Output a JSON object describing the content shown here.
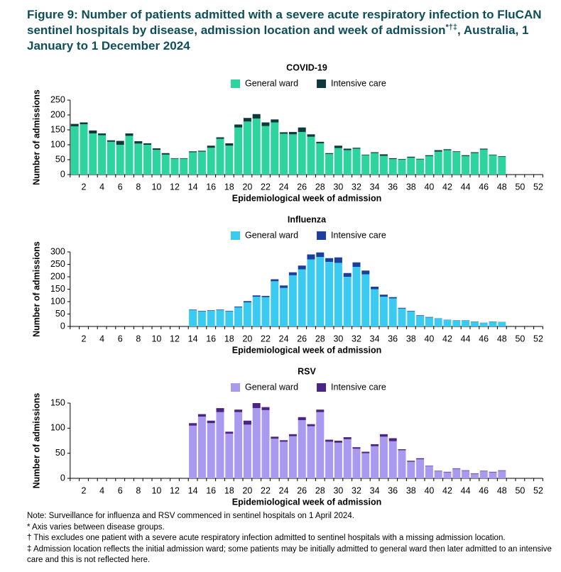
{
  "figure_title": {
    "main": "Figure 9: Number of patients admitted with a severe acute respiratory infection to FluCAN sentinel hospitals by disease, admission location and week of admission",
    "marks": "*†‡",
    "end": ", Australia, 1 January to 1 December 2024"
  },
  "chart_data": [
    {
      "type": "bar",
      "stacked": true,
      "title": "COVID-19",
      "xlabel": "Epidemiological week of admission",
      "ylabel": "Number of admissions",
      "categories": [
        null,
        "2",
        null,
        "4",
        null,
        "6",
        null,
        "8",
        null,
        "10",
        null,
        "12",
        null,
        "14",
        null,
        "16",
        null,
        "18",
        null,
        "20",
        null,
        "22",
        null,
        "24",
        null,
        "26",
        null,
        "28",
        null,
        "30",
        null,
        "32",
        null,
        "34",
        null,
        "36",
        null,
        "38",
        null,
        "40",
        null,
        "42",
        null,
        "44",
        null,
        "46",
        null,
        "48",
        null,
        "50",
        null,
        "52"
      ],
      "ylim": [
        0,
        250
      ],
      "yticks": [
        0,
        50,
        100,
        150,
        200,
        250
      ],
      "series": [
        {
          "name": "General ward",
          "color": "#2dd49d",
          "values": [
            162,
            169,
            138,
            132,
            110,
            100,
            130,
            104,
            100,
            83,
            67,
            53,
            53,
            75,
            77,
            90,
            120,
            97,
            158,
            178,
            188,
            163,
            175,
            137,
            135,
            143,
            127,
            105,
            69,
            89,
            82,
            87,
            65,
            72,
            63,
            52,
            50,
            57,
            51,
            62,
            77,
            82,
            76,
            62,
            72,
            84,
            65,
            60,
            null,
            null,
            null,
            null
          ]
        },
        {
          "name": "Intensive care",
          "color": "#0c3a3c",
          "values": [
            8,
            6,
            10,
            6,
            5,
            13,
            8,
            8,
            5,
            5,
            5,
            2,
            2,
            3,
            3,
            7,
            5,
            8,
            10,
            12,
            15,
            12,
            10,
            5,
            8,
            15,
            8,
            5,
            3,
            8,
            5,
            3,
            2,
            3,
            5,
            3,
            2,
            3,
            2,
            3,
            5,
            3,
            2,
            3,
            3,
            3,
            2,
            2,
            null,
            null,
            null,
            null
          ]
        }
      ]
    },
    {
      "type": "bar",
      "stacked": true,
      "title": "Influenza",
      "xlabel": "Epidemiological week of admission",
      "ylabel": "Number of admissions",
      "categories": [
        null,
        "2",
        null,
        "4",
        null,
        "6",
        null,
        "8",
        null,
        "10",
        null,
        "12",
        null,
        "14",
        null,
        "16",
        null,
        "18",
        null,
        "20",
        null,
        "22",
        null,
        "24",
        null,
        "26",
        null,
        "28",
        null,
        "30",
        null,
        "32",
        null,
        "34",
        null,
        "36",
        null,
        "38",
        null,
        "40",
        null,
        "42",
        null,
        "44",
        null,
        "46",
        null,
        "48",
        null,
        "50",
        null,
        "52"
      ],
      "ylim": [
        0,
        300
      ],
      "yticks": [
        0,
        50,
        100,
        150,
        200,
        250,
        300
      ],
      "series": [
        {
          "name": "General ward",
          "color": "#3ccbf0",
          "values": [
            null,
            null,
            null,
            null,
            null,
            null,
            null,
            null,
            null,
            null,
            null,
            null,
            null,
            66,
            61,
            63,
            66,
            61,
            77,
            97,
            120,
            118,
            182,
            155,
            206,
            230,
            270,
            280,
            260,
            256,
            200,
            240,
            210,
            150,
            120,
            113,
            72,
            61,
            43,
            36,
            32,
            26,
            24,
            24,
            19,
            14,
            19,
            17,
            null,
            null,
            null,
            null
          ]
        },
        {
          "name": "Intensive care",
          "color": "#1a3f9c",
          "values": [
            null,
            null,
            null,
            null,
            null,
            null,
            null,
            null,
            null,
            null,
            null,
            null,
            null,
            2,
            2,
            2,
            2,
            2,
            3,
            5,
            5,
            5,
            8,
            10,
            12,
            15,
            20,
            18,
            15,
            22,
            15,
            18,
            15,
            10,
            8,
            5,
            3,
            2,
            2,
            2,
            1,
            1,
            1,
            1,
            1,
            1,
            1,
            1,
            null,
            null,
            null,
            null
          ]
        }
      ]
    },
    {
      "type": "bar",
      "stacked": true,
      "title": "RSV",
      "xlabel": "Epidemiological week of admission",
      "ylabel": "Number of admissions",
      "categories": [
        null,
        "2",
        null,
        "4",
        null,
        "6",
        null,
        "8",
        null,
        "10",
        null,
        "12",
        null,
        "14",
        null,
        "16",
        null,
        "18",
        null,
        "20",
        null,
        "22",
        null,
        "24",
        null,
        "26",
        null,
        "28",
        null,
        "30",
        null,
        "32",
        null,
        "34",
        null,
        "36",
        null,
        "38",
        null,
        "40",
        null,
        "42",
        null,
        "44",
        null,
        "46",
        null,
        "48",
        null,
        "50",
        null,
        "52"
      ],
      "ylim": [
        0,
        150
      ],
      "yticks": [
        0,
        50,
        100,
        150
      ],
      "series": [
        {
          "name": "General ward",
          "color": "#a99af0",
          "values": [
            null,
            null,
            null,
            null,
            null,
            null,
            null,
            null,
            null,
            null,
            null,
            null,
            null,
            105,
            123,
            110,
            132,
            89,
            132,
            107,
            140,
            136,
            79,
            73,
            84,
            116,
            104,
            132,
            73,
            71,
            78,
            59,
            50,
            64,
            83,
            74,
            56,
            33,
            38,
            24,
            14,
            12,
            19,
            15,
            9,
            14,
            12,
            15,
            null,
            null,
            null,
            null
          ]
        },
        {
          "name": "Intensive care",
          "color": "#4b2585",
          "values": [
            null,
            null,
            null,
            null,
            null,
            null,
            null,
            null,
            null,
            null,
            null,
            null,
            null,
            5,
            5,
            5,
            8,
            4,
            5,
            8,
            10,
            6,
            4,
            3,
            4,
            6,
            4,
            5,
            4,
            4,
            4,
            3,
            3,
            4,
            5,
            6,
            2,
            2,
            2,
            1,
            1,
            1,
            1,
            1,
            1,
            1,
            1,
            1,
            null,
            null,
            null,
            null
          ]
        }
      ]
    }
  ],
  "notes": [
    "Note: Surveillance for influenza and RSV commenced in sentinel hospitals on 1 April 2024.",
    "* Axis varies between disease groups.",
    "† This excludes one patient with a severe acute respiratory infection admitted to sentinel hospitals with a missing admission location.",
    "‡ Admission location reflects the initial admission ward; some patients may be initially admitted to general ward then later admitted to an intensive care and this is not reflected here."
  ]
}
